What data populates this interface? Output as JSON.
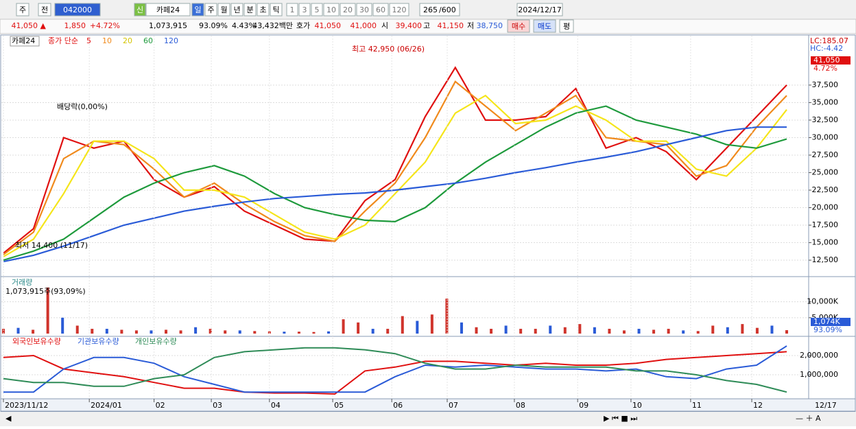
{
  "toolbar": {
    "period": "주",
    "prev": "전",
    "code": "042000",
    "credit": "신",
    "name": "카페24",
    "intervals": [
      "일",
      "주",
      "월",
      "년",
      "분",
      "초",
      "틱"
    ],
    "ticks": [
      "1",
      "3",
      "5",
      "10",
      "20",
      "30",
      "60",
      "120"
    ],
    "count": "265",
    "max": "/600",
    "date": "2024/12/17"
  },
  "quote": {
    "price": "41,050 ▲",
    "change": "1,850",
    "rate": "+4.72%",
    "volume": "1,073,915",
    "vol_ratio": "93.09%",
    "turnover": "4.43%",
    "amount": "43,432백만",
    "ask_label": "호가",
    "ask": "41,050",
    "bid": "41,000",
    "open_label": "시",
    "open": "39,400",
    "high_label": "고",
    "high": "41,150",
    "low_label": "저",
    "low": "38,750",
    "buy": "매수",
    "sell": "매도",
    "avg": "평"
  },
  "chart_data": [
    {
      "type": "line",
      "title": "카페24",
      "legend_prefix": "종가 단순",
      "series": [
        {
          "name": "5",
          "color": "#e01010",
          "values": [
            13500,
            17000,
            30000,
            28500,
            29500,
            24000,
            21500,
            23000,
            19500,
            17500,
            15500,
            15200,
            21000,
            24000,
            33000,
            40000,
            32500,
            32500,
            33000,
            37000,
            28500,
            30000,
            28000,
            24000,
            28500,
            33000,
            37500
          ]
        },
        {
          "name": "10",
          "color": "#f08a1c",
          "values": [
            13300,
            16500,
            27000,
            29500,
            29000,
            25500,
            21500,
            23500,
            20500,
            18000,
            16000,
            15200,
            19500,
            23500,
            30000,
            38000,
            34500,
            31000,
            33500,
            36000,
            30000,
            29500,
            29000,
            24500,
            26000,
            31500,
            36000
          ]
        },
        {
          "name": "20",
          "color": "#f5e51a",
          "values": [
            13000,
            15500,
            22000,
            29500,
            29500,
            27000,
            22500,
            22500,
            21500,
            19000,
            16500,
            15500,
            17500,
            22000,
            26500,
            33500,
            36000,
            32000,
            32500,
            34500,
            32500,
            29500,
            29500,
            25500,
            24500,
            28500,
            34000
          ]
        },
        {
          "name": "60",
          "color": "#1e9a3c",
          "values": [
            12500,
            13800,
            15500,
            18500,
            21500,
            23500,
            25000,
            26000,
            24500,
            22000,
            20000,
            19000,
            18200,
            18000,
            20000,
            23500,
            26500,
            29000,
            31500,
            33500,
            34500,
            32500,
            31500,
            30500,
            29000,
            28500,
            29800
          ]
        },
        {
          "name": "120",
          "color": "#2a5bd7",
          "values": [
            12300,
            13200,
            14500,
            16000,
            17500,
            18500,
            19500,
            20200,
            20800,
            21300,
            21600,
            21900,
            22100,
            22500,
            23000,
            23500,
            24200,
            25000,
            25700,
            26500,
            27200,
            28000,
            29000,
            30000,
            31000,
            31500,
            31500
          ]
        }
      ],
      "ylim": [
        10250,
        44550
      ],
      "yticks": [
        {
          "value": 12500,
          "label": "12,500"
        },
        {
          "value": 15000,
          "label": "15,000"
        },
        {
          "value": 17500,
          "label": "17,500"
        },
        {
          "value": 20000,
          "label": "20,000"
        },
        {
          "value": 22500,
          "label": "22,500"
        },
        {
          "value": 25000,
          "label": "25,000"
        },
        {
          "value": 27500,
          "label": "27,500"
        },
        {
          "value": 30000,
          "label": "30,000"
        },
        {
          "value": 32500,
          "label": "32,500"
        },
        {
          "value": 35000,
          "label": "35,000"
        },
        {
          "value": 37500,
          "label": "37,500"
        }
      ],
      "grid": true,
      "annotations": [
        "최고 42,950 (06/26)",
        "배당락(0,00%)",
        "최저 14,400 (11/17)"
      ],
      "side_labels": [
        "LC:185.07",
        "HC:-4.42",
        "41,050",
        "4.72%"
      ]
    },
    {
      "type": "bar",
      "title": "거래량",
      "subtitle": "1,073,915주(93,09%)",
      "color": "#d0342c",
      "values": [
        1500,
        1800,
        1200,
        14500,
        5000,
        2500,
        1500,
        1500,
        1200,
        1000,
        1000,
        1200,
        1000,
        2000,
        1500,
        1000,
        1000,
        800,
        700,
        600,
        600,
        500,
        700,
        4500,
        3500,
        1500,
        1500,
        5500,
        4000,
        6000,
        11000,
        3500,
        2000,
        1500,
        2500,
        1500,
        1500,
        2500,
        2000,
        3000,
        2000,
        1500,
        1000,
        1500,
        1200,
        1500,
        1000,
        800,
        2500,
        2000,
        3000,
        1800,
        2500,
        1074
      ],
      "ylim": [
        0,
        17700
      ],
      "yticks": [
        {
          "value": 5000,
          "label": "5,000K"
        },
        {
          "value": 10000,
          "label": "10,000K"
        }
      ],
      "current_label": "1,074K",
      "current_ratio": "93.09%"
    },
    {
      "type": "line",
      "series": [
        {
          "name": "외국인보유수량",
          "color": "#e01010",
          "values": [
            1900000,
            2000000,
            1300000,
            1100000,
            900000,
            600000,
            300000,
            300000,
            100000,
            50000,
            50000,
            0,
            1200000,
            1400000,
            1700000,
            1700000,
            1600000,
            1500000,
            1600000,
            1500000,
            1500000,
            1600000,
            1800000,
            1900000,
            2000000,
            2100000,
            2200000
          ]
        },
        {
          "name": "기관보유수량",
          "color": "#2a5bd7",
          "values": [
            100000,
            100000,
            1300000,
            1900000,
            1900000,
            1600000,
            900000,
            500000,
            100000,
            100000,
            100000,
            100000,
            100000,
            900000,
            1500000,
            1400000,
            1500000,
            1400000,
            1300000,
            1300000,
            1200000,
            1300000,
            900000,
            800000,
            1300000,
            1500000,
            2500000
          ]
        },
        {
          "name": "개인보유수량",
          "color": "#2e8b57",
          "values": [
            800000,
            600000,
            600000,
            400000,
            400000,
            800000,
            1000000,
            1900000,
            2200000,
            2300000,
            2400000,
            2400000,
            2300000,
            2100000,
            1600000,
            1300000,
            1300000,
            1500000,
            1400000,
            1400000,
            1400000,
            1200000,
            1200000,
            1000000,
            700000,
            500000,
            100000
          ]
        }
      ],
      "ylim": [
        0,
        3000000
      ],
      "yticks": [
        {
          "value": 1000000,
          "label": "1,000,000"
        },
        {
          "value": 2000000,
          "label": "2,000,000"
        }
      ],
      "xticks": [
        {
          "value": 0,
          "label": "2023/11/12"
        },
        {
          "value": 2.85,
          "label": "2024/01"
        },
        {
          "value": 5.0,
          "label": "02"
        },
        {
          "value": 6.9,
          "label": "03"
        },
        {
          "value": 8.83,
          "label": "04"
        },
        {
          "value": 10.93,
          "label": "05"
        },
        {
          "value": 12.89,
          "label": "06"
        },
        {
          "value": 14.73,
          "label": "07"
        },
        {
          "value": 16.96,
          "label": "08"
        },
        {
          "value": 19.06,
          "label": "09"
        },
        {
          "value": 20.83,
          "label": "10"
        },
        {
          "value": 22.81,
          "label": "11"
        },
        {
          "value": 24.84,
          "label": "12"
        }
      ],
      "x_end_label": "12/17"
    }
  ]
}
